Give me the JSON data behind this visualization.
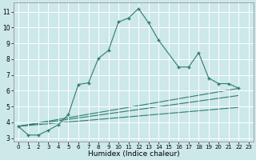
{
  "xlabel": "Humidex (Indice chaleur)",
  "background_color": "#cde8e8",
  "grid_color": "#ffffff",
  "line_color": "#2e7d6e",
  "xlim": [
    -0.5,
    23.5
  ],
  "ylim": [
    2.8,
    11.6
  ],
  "xticks": [
    0,
    1,
    2,
    3,
    4,
    5,
    6,
    7,
    8,
    9,
    10,
    11,
    12,
    13,
    14,
    15,
    16,
    17,
    18,
    19,
    20,
    21,
    22,
    23
  ],
  "yticks": [
    3,
    4,
    5,
    6,
    7,
    8,
    9,
    10,
    11
  ],
  "main_line": {
    "x": [
      0,
      1,
      2,
      3,
      4,
      5,
      6,
      7,
      8,
      9,
      10,
      11,
      12,
      13,
      14,
      16,
      17,
      18,
      19,
      20,
      21,
      22
    ],
    "y": [
      3.75,
      3.2,
      3.2,
      3.5,
      3.85,
      4.5,
      6.4,
      6.5,
      8.05,
      8.55,
      10.35,
      10.6,
      11.2,
      10.3,
      9.2,
      7.5,
      7.5,
      8.4,
      6.8,
      6.45,
      6.45,
      6.15
    ]
  },
  "straight_lines": [
    {
      "x": [
        0,
        22
      ],
      "y": [
        3.75,
        6.15
      ]
    },
    {
      "x": [
        0,
        22
      ],
      "y": [
        3.75,
        5.7
      ]
    },
    {
      "x": [
        0,
        22
      ],
      "y": [
        3.75,
        4.95
      ]
    }
  ]
}
